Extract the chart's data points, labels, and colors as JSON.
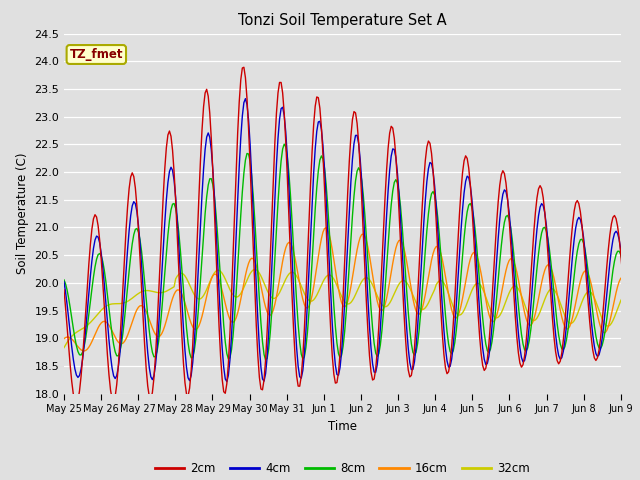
{
  "title": "Tonzi Soil Temperature Set A",
  "xlabel": "Time",
  "ylabel": "Soil Temperature (C)",
  "ylim": [
    18.0,
    24.5
  ],
  "yticks": [
    18.0,
    18.5,
    19.0,
    19.5,
    20.0,
    20.5,
    21.0,
    21.5,
    22.0,
    22.5,
    23.0,
    23.5,
    24.0,
    24.5
  ],
  "annotation_text": "TZ_fmet",
  "annotation_bg": "#ffffcc",
  "annotation_border": "#aaaa00",
  "annotation_text_color": "#880000",
  "colors": {
    "2cm": "#cc0000",
    "4cm": "#0000cc",
    "8cm": "#00bb00",
    "16cm": "#ff8800",
    "32cm": "#cccc00"
  },
  "legend_labels": [
    "2cm",
    "4cm",
    "8cm",
    "16cm",
    "32cm"
  ],
  "bg_color": "#e0e0e0",
  "tick_labels": [
    "May 25",
    "May 26",
    "May 27",
    "May 28",
    "May 29",
    "May 30",
    "May 31",
    "Jun 1",
    "Jun 2",
    "Jun 3",
    "Jun 4",
    "Jun 5",
    "Jun 6",
    "Jun 7",
    "Jun 8",
    "Jun 9"
  ],
  "num_points": 384
}
